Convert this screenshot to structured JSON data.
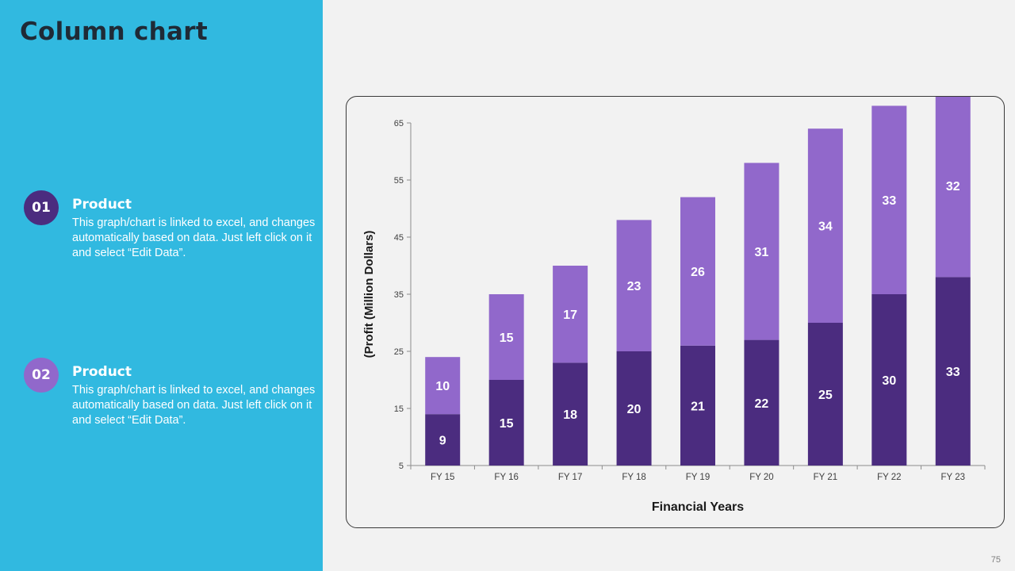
{
  "slide": {
    "title": "Column chart",
    "page_number": "75"
  },
  "items": [
    {
      "number": "01",
      "title": "Product",
      "text": "This graph/chart is linked to excel, and changes automatically based on data. Just left click on it and select “Edit Data”."
    },
    {
      "number": "02",
      "title": "Product",
      "text": "This graph/chart is linked to excel, and changes automatically based on data. Just left click on it and select “Edit Data”."
    }
  ],
  "colors": {
    "panel": "#31b9e0",
    "series_dark": "#4b2c7f",
    "series_light": "#9168cb"
  },
  "chart_data": {
    "type": "bar",
    "stacked": true,
    "title": "",
    "xlabel": "Financial Years",
    "ylabel": "(Profit (Million Dollars)",
    "categories": [
      "FY 15",
      "FY 16",
      "FY 17",
      "FY 18",
      "FY 19",
      "FY 20",
      "FY 21",
      "FY 22",
      "FY 23"
    ],
    "series": [
      {
        "name": "Product 01",
        "color": "#4b2c7f",
        "values": [
          9,
          15,
          18,
          20,
          21,
          22,
          25,
          30,
          33
        ]
      },
      {
        "name": "Product 02",
        "color": "#9168cb",
        "values": [
          10,
          15,
          17,
          23,
          26,
          31,
          34,
          33,
          32
        ]
      }
    ],
    "ylim": [
      5,
      65
    ],
    "yticks": [
      5,
      15,
      25,
      35,
      45,
      55,
      65
    ],
    "grid": false,
    "legend": "none"
  }
}
